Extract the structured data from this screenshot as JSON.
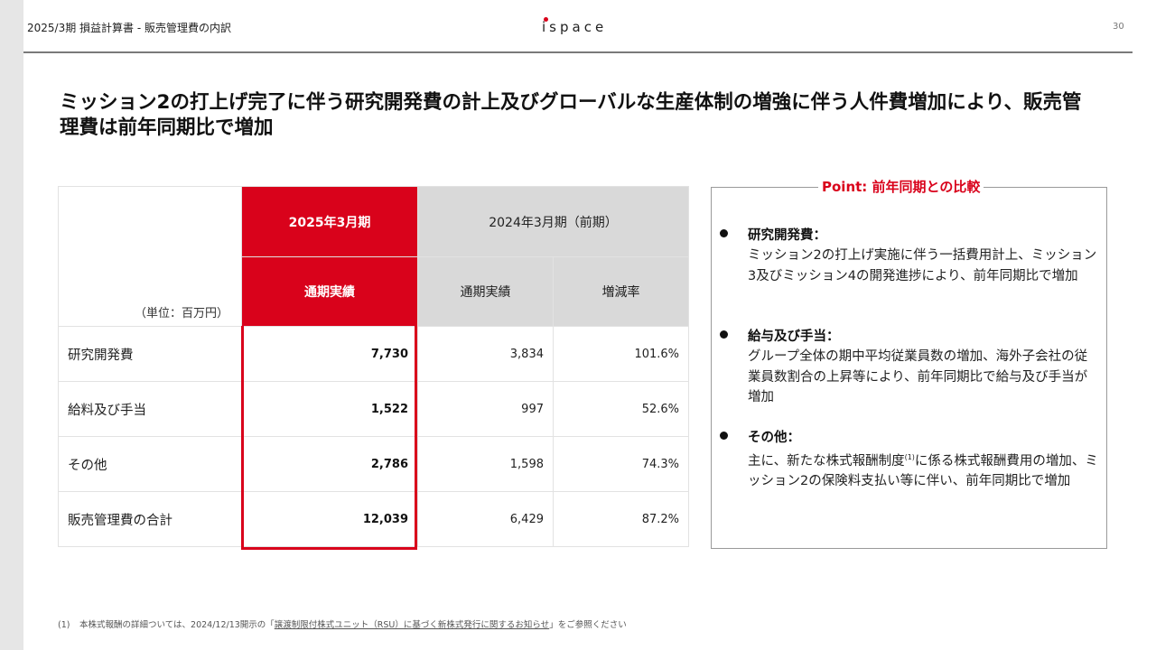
{
  "header": {
    "title": "2025/3期 損益計算書 - 販売管理費の内訳",
    "logo_text": "ispace",
    "page_number": "30"
  },
  "headline": "ミッション2の打上げ完了に伴う研究開発費の計上及びグローバルな生産体制の増強に伴う人件費増加により、販売管理費は前年同期比で増加",
  "table": {
    "unit_label": "（単位：百万円）",
    "current_period": "2025年3月期",
    "current_sub": "通期実績",
    "previous_period": "2024年3月期（前期）",
    "previous_sub": "通期実績",
    "change_label": "増減率",
    "rows": [
      {
        "label": "研究開発費",
        "current": "7,730",
        "previous": "3,834",
        "change": "101.6%"
      },
      {
        "label": "給料及び手当",
        "current": "1,522",
        "previous": "997",
        "change": "52.6%"
      },
      {
        "label": "その他",
        "current": "2,786",
        "previous": "1,598",
        "change": "74.3%"
      },
      {
        "label": "販売管理費の合計",
        "current": "12,039",
        "previous": "6,429",
        "change": "87.2%"
      }
    ]
  },
  "point": {
    "title": "Point: 前年同期との比較",
    "items": [
      {
        "heading": "研究開発費：",
        "body": "ミッション2の打上げ実施に伴う一括費用計上、ミッション3及びミッション4の開発進捗により、前年同期比で増加"
      },
      {
        "heading": "給与及び手当：",
        "body": "グループ全体の期中平均従業員数の増加、海外子会社の従業員数割合の上昇等により、前年同期比で給与及び手当が増加"
      },
      {
        "heading": "その他：",
        "body_before": "主に、新たな株式報酬制度",
        "body_sup": "(1)",
        "body_after": "に係る株式報酬費用の増加、ミッション2の保険料支払い等に伴い、前年同期比で増加"
      }
    ]
  },
  "footnote": {
    "number": "(1)",
    "text_before": "本株式報酬の詳細ついては、2024/12/13開示の「",
    "link_text": "譲渡制限付株式ユニット（RSU）に基づく新株式発行に関するお知らせ",
    "text_after": "」をご参照ください"
  },
  "colors": {
    "accent": "#d9021b",
    "previous_header": "#d9d9d9",
    "rule": "#7a7a7a"
  }
}
